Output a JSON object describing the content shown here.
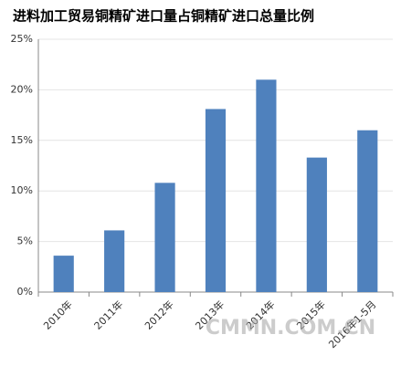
{
  "chart_data": {
    "type": "bar",
    "title": "进料加工贸易铜精矿进口量占铜精矿进口总量比例",
    "categories": [
      "2010年",
      "2011年",
      "2012年",
      "2013年",
      "2014年",
      "2015年",
      "2016年1-5月"
    ],
    "values": [
      3.6,
      6.1,
      10.8,
      18.1,
      21.0,
      13.3,
      16.0
    ],
    "color": "#4f81bd",
    "ylim": [
      0,
      25
    ],
    "yticks": [
      {
        "value": 0,
        "label": "0%"
      },
      {
        "value": 5,
        "label": "5%"
      },
      {
        "value": 10,
        "label": "10%"
      },
      {
        "value": 15,
        "label": "15%"
      },
      {
        "value": 20,
        "label": "20%"
      },
      {
        "value": 25,
        "label": "25%"
      }
    ],
    "grid": true,
    "watermark": "CMMN.COM.CN"
  }
}
